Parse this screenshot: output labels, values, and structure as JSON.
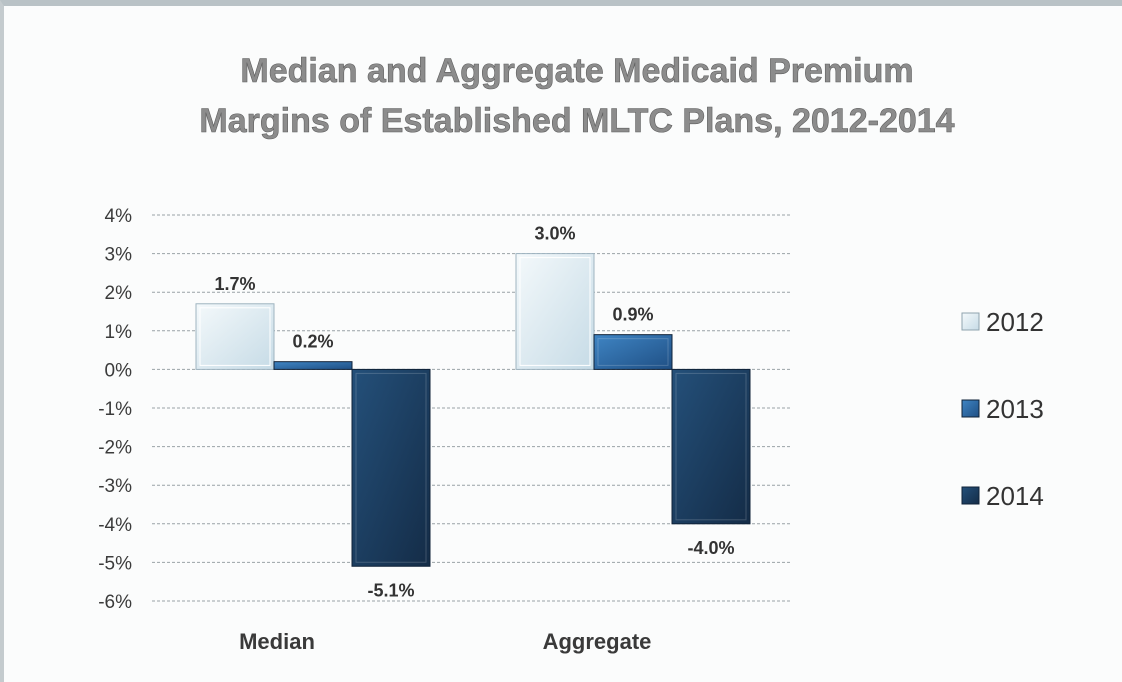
{
  "chart_data": {
    "type": "bar",
    "title_lines": [
      "Median and Aggregate Medicaid Premium",
      "Margins of Established MLTC Plans, 2012-2014"
    ],
    "categories": [
      "Median",
      "Aggregate"
    ],
    "series": [
      {
        "name": "2012",
        "values": [
          1.7,
          3.0
        ],
        "labels": [
          "1.7%",
          "3.0%"
        ],
        "color": "#e3eef4"
      },
      {
        "name": "2013",
        "values": [
          0.2,
          0.9
        ],
        "labels": [
          "0.2%",
          "0.9%"
        ],
        "color": "#2f6fa8"
      },
      {
        "name": "2014",
        "values": [
          -5.1,
          -4.0
        ],
        "labels": [
          "-5.1%",
          "-4.0%"
        ],
        "color": "#1d3d5f"
      }
    ],
    "y_ticks": [
      "4%",
      "3%",
      "2%",
      "1%",
      "0%",
      "-1%",
      "-2%",
      "-3%",
      "-4%",
      "-5%",
      "-6%"
    ],
    "ylim": [
      -6,
      4
    ],
    "grid": true,
    "legend_position": "right",
    "xlabel": "",
    "ylabel": ""
  }
}
